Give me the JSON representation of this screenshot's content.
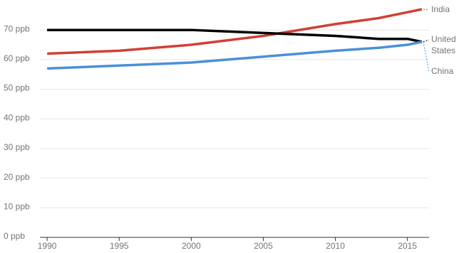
{
  "chart_data": {
    "type": "line",
    "x": [
      1990,
      1995,
      2000,
      2005,
      2010,
      2013,
      2015,
      2016
    ],
    "series": [
      {
        "name": "India",
        "color": "#d13f36",
        "values": [
          62,
          63,
          65,
          68,
          72,
          74,
          76,
          77
        ]
      },
      {
        "name": "United States",
        "color": "#000000",
        "values": [
          70,
          70,
          70,
          69,
          68,
          67,
          67,
          66
        ]
      },
      {
        "name": "China",
        "color": "#4a90d9",
        "values": [
          57,
          58,
          59,
          61,
          63,
          64,
          65,
          66
        ]
      }
    ],
    "xlim": [
      1989.5,
      2016.5
    ],
    "xticks": [
      1990,
      1995,
      2000,
      2005,
      2010,
      2015
    ],
    "ylim": [
      0,
      80
    ],
    "yticks": [
      {
        "value": 0,
        "label": "0 ppb"
      },
      {
        "value": 10,
        "label": "10 ppb"
      },
      {
        "value": 20,
        "label": "20 ppb"
      },
      {
        "value": 30,
        "label": "30 ppb"
      },
      {
        "value": 40,
        "label": "40 ppb"
      },
      {
        "value": 50,
        "label": "50 ppb"
      },
      {
        "value": 60,
        "label": "60 ppb"
      },
      {
        "value": 70,
        "label": "70 ppb"
      }
    ],
    "grid": true
  }
}
